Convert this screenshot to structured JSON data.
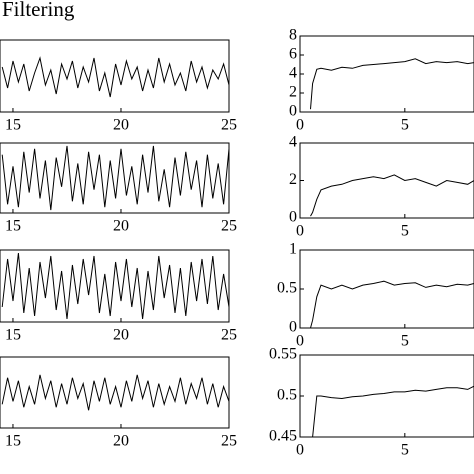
{
  "chart_data": [
    {
      "type": "line",
      "title": "Filtering",
      "color": "#000000",
      "xlim": [
        14.4,
        25
      ],
      "xticks": [
        15,
        20,
        25
      ],
      "ylim": [
        -1.2,
        1.2
      ],
      "x": [
        14.5,
        14.75,
        15,
        15.25,
        15.5,
        15.75,
        16,
        16.25,
        16.5,
        16.75,
        17,
        17.25,
        17.5,
        17.75,
        18,
        18.25,
        18.5,
        18.75,
        19,
        19.25,
        19.5,
        19.75,
        20,
        20.25,
        20.5,
        20.75,
        21,
        21.25,
        21.5,
        21.75,
        22,
        22.25,
        22.5,
        22.75,
        23,
        23.25,
        23.5,
        23.75,
        24,
        24.25,
        24.5,
        24.75,
        25
      ],
      "values": [
        0.3,
        -0.4,
        0.5,
        -0.2,
        0.4,
        -0.5,
        0.1,
        0.6,
        -0.3,
        0.2,
        -0.6,
        0.4,
        -0.1,
        0.5,
        -0.4,
        0.3,
        -0.2,
        0.6,
        -0.5,
        0.1,
        -0.7,
        0.4,
        -0.3,
        0.5,
        -0.1,
        0.3,
        -0.5,
        0.2,
        -0.4,
        0.6,
        -0.2,
        0.4,
        -0.3,
        0.1,
        -0.5,
        0.5,
        -0.2,
        0.3,
        -0.4,
        0.2,
        -0.1,
        0.4,
        -0.3
      ]
    },
    {
      "type": "line",
      "color": "#000000",
      "xlim": [
        0,
        8.3
      ],
      "xticks": [
        0,
        5
      ],
      "ylim": [
        0,
        8
      ],
      "yticks": [
        0,
        2,
        4,
        6,
        8
      ],
      "x": [
        0.5,
        0.6,
        0.8,
        1,
        1.5,
        2,
        2.5,
        3,
        3.5,
        4,
        4.5,
        5,
        5.5,
        6,
        6.5,
        7,
        7.5,
        8,
        8.3
      ],
      "values": [
        0.3,
        3.0,
        4.5,
        4.6,
        4.4,
        4.7,
        4.6,
        4.9,
        5.0,
        5.1,
        5.2,
        5.3,
        5.6,
        5.1,
        5.3,
        5.2,
        5.3,
        5.1,
        5.2
      ]
    },
    {
      "type": "line",
      "color": "#000000",
      "xlim": [
        14.4,
        25
      ],
      "xticks": [
        15,
        20,
        25
      ],
      "ylim": [
        -1.2,
        1.2
      ],
      "x": [
        14.5,
        14.75,
        15,
        15.25,
        15.5,
        15.75,
        16,
        16.25,
        16.5,
        16.75,
        17,
        17.25,
        17.5,
        17.75,
        18,
        18.25,
        18.5,
        18.75,
        19,
        19.25,
        19.5,
        19.75,
        20,
        20.25,
        20.5,
        20.75,
        21,
        21.25,
        21.5,
        21.75,
        22,
        22.25,
        22.5,
        22.75,
        23,
        23.25,
        23.5,
        23.75,
        24,
        24.25,
        24.5,
        24.75,
        25
      ],
      "values": [
        0.8,
        -0.9,
        0.4,
        -1.0,
        0.9,
        -0.5,
        1.0,
        -0.7,
        0.6,
        -1.1,
        0.7,
        -0.3,
        1.1,
        -0.8,
        0.5,
        -0.9,
        0.9,
        -0.4,
        0.8,
        -1.0,
        0.6,
        -0.7,
        1.0,
        -0.6,
        0.4,
        -0.9,
        0.8,
        -0.5,
        1.1,
        -0.8,
        0.3,
        -1.0,
        0.7,
        -0.6,
        0.9,
        -0.4,
        0.6,
        -1.0,
        0.8,
        -0.7,
        0.5,
        -0.9,
        1.0
      ]
    },
    {
      "type": "line",
      "color": "#000000",
      "xlim": [
        0,
        8.3
      ],
      "xticks": [
        0,
        5
      ],
      "ylim": [
        0,
        4
      ],
      "yticks": [
        0,
        2,
        4
      ],
      "x": [
        0.5,
        0.6,
        0.8,
        1,
        1.5,
        2,
        2.5,
        3,
        3.5,
        4,
        4.5,
        5,
        5.5,
        6,
        6.5,
        7,
        7.5,
        8,
        8.3
      ],
      "values": [
        0.1,
        0.3,
        1.0,
        1.5,
        1.7,
        1.8,
        2.0,
        2.1,
        2.2,
        2.1,
        2.3,
        2.0,
        2.1,
        1.9,
        1.7,
        2.0,
        1.9,
        1.8,
        2.0
      ]
    },
    {
      "type": "line",
      "color": "#000000",
      "xlim": [
        14.4,
        25
      ],
      "xticks": [
        15,
        20,
        25
      ],
      "ylim": [
        -1.2,
        1.2
      ],
      "x": [
        14.5,
        14.75,
        15,
        15.25,
        15.5,
        15.75,
        16,
        16.25,
        16.5,
        16.75,
        17,
        17.25,
        17.5,
        17.75,
        18,
        18.25,
        18.5,
        18.75,
        19,
        19.25,
        19.5,
        19.75,
        20,
        20.25,
        20.5,
        20.75,
        21,
        21.25,
        21.5,
        21.75,
        22,
        22.25,
        22.5,
        22.75,
        23,
        23.25,
        23.5,
        23.75,
        24,
        24.25,
        24.5,
        24.75,
        25
      ],
      "values": [
        -0.7,
        0.9,
        -0.5,
        1.1,
        -0.9,
        0.6,
        -1.0,
        0.8,
        -0.4,
        1.0,
        -0.8,
        0.5,
        -1.1,
        0.7,
        -0.6,
        0.9,
        -0.3,
        1.0,
        -0.9,
        0.4,
        -1.0,
        0.8,
        -0.5,
        0.9,
        -0.7,
        0.6,
        -1.1,
        0.5,
        -0.8,
        1.0,
        -0.4,
        0.7,
        -0.9,
        0.6,
        -1.0,
        0.8,
        -0.5,
        0.9,
        -0.6,
        1.0,
        -0.8,
        0.4,
        -0.7
      ]
    },
    {
      "type": "line",
      "color": "#000000",
      "xlim": [
        0,
        8.3
      ],
      "xticks": [
        0,
        5
      ],
      "ylim": [
        0,
        1
      ],
      "yticks": [
        0,
        0.5,
        1
      ],
      "x": [
        0.5,
        0.6,
        0.8,
        1,
        1.5,
        2,
        2.5,
        3,
        3.5,
        4,
        4.5,
        5,
        5.5,
        6,
        6.5,
        7,
        7.5,
        8,
        8.3
      ],
      "values": [
        0,
        0.1,
        0.4,
        0.55,
        0.5,
        0.55,
        0.5,
        0.55,
        0.57,
        0.6,
        0.55,
        0.57,
        0.58,
        0.52,
        0.55,
        0.53,
        0.56,
        0.55,
        0.57
      ]
    },
    {
      "type": "line",
      "color": "#000000",
      "xlim": [
        14.4,
        25
      ],
      "xticks": [
        15,
        20,
        25
      ],
      "ylim": [
        -1.2,
        1.2
      ],
      "x": [
        14.5,
        14.75,
        15,
        15.25,
        15.5,
        15.75,
        16,
        16.25,
        16.5,
        16.75,
        17,
        17.25,
        17.5,
        17.75,
        18,
        18.25,
        18.5,
        18.75,
        19,
        19.25,
        19.5,
        19.75,
        20,
        20.25,
        20.5,
        20.75,
        21,
        21.25,
        21.5,
        21.75,
        22,
        22.25,
        22.5,
        22.75,
        23,
        23.25,
        23.5,
        23.75,
        24,
        24.25,
        24.5,
        24.75,
        25
      ],
      "values": [
        -0.4,
        0.5,
        -0.3,
        0.4,
        -0.5,
        0.2,
        -0.4,
        0.6,
        -0.2,
        0.4,
        -0.5,
        0.3,
        -0.4,
        0.5,
        -0.2,
        0.3,
        -0.6,
        0.4,
        -0.3,
        0.5,
        -0.4,
        0.2,
        -0.5,
        0.4,
        -0.3,
        0.6,
        -0.2,
        0.4,
        -0.5,
        0.3,
        -0.4,
        0.2,
        -0.3,
        0.5,
        -0.4,
        0.3,
        -0.2,
        0.5,
        -0.4,
        0.3,
        -0.5,
        0.2,
        -0.3
      ]
    },
    {
      "type": "line",
      "color": "#000000",
      "xlim": [
        0,
        8.3
      ],
      "xticks": [
        0,
        5
      ],
      "ylim": [
        0.45,
        0.55
      ],
      "yticks": [
        0.45,
        0.5,
        0.55
      ],
      "x": [
        0.5,
        0.6,
        0.8,
        1,
        1.5,
        2,
        2.5,
        3,
        3.5,
        4,
        4.5,
        5,
        5.5,
        6,
        6.5,
        7,
        7.5,
        8,
        8.3
      ],
      "values": [
        null,
        0.45,
        0.5,
        0.5,
        0.498,
        0.497,
        0.499,
        0.5,
        0.502,
        0.503,
        0.505,
        0.505,
        0.507,
        0.506,
        0.508,
        0.51,
        0.51,
        0.508,
        0.512
      ]
    }
  ]
}
